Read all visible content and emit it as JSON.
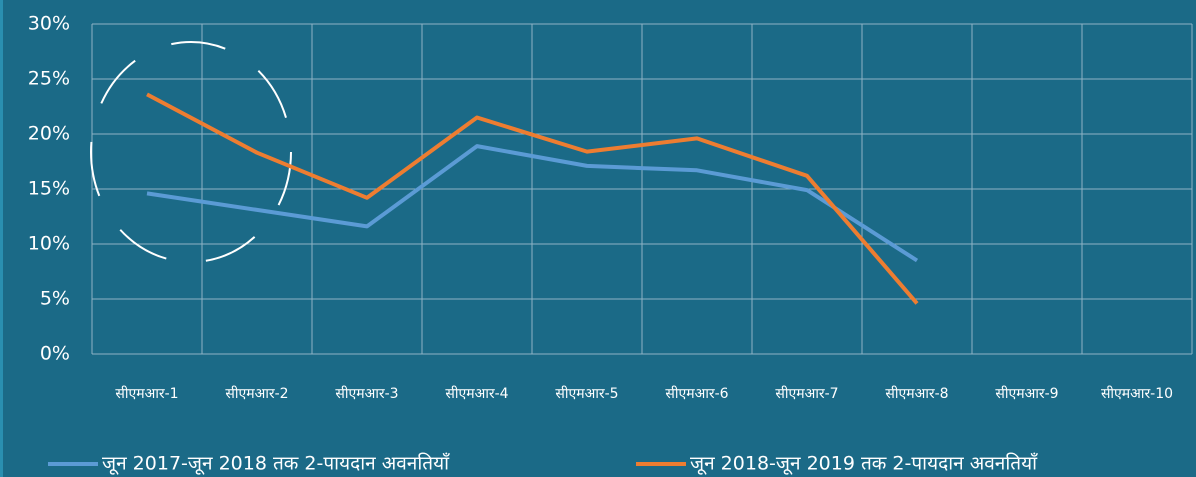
{
  "chart_data": {
    "type": "line",
    "categories": [
      "सीएमआर-1",
      "सीएमआर-2",
      "सीएमआर-3",
      "सीएमआर-4",
      "सीएमआर-5",
      "सीएमआर-6",
      "सीएमआर-7",
      "सीएमआर-8",
      "सीएमआर-9",
      "सीएमआर-10"
    ],
    "series": [
      {
        "name": "जून 2017-जून 2018 तक 2-पायदान अवनतियाँ",
        "color": "#5b9bd5",
        "values": [
          14.6,
          13.1,
          11.6,
          18.9,
          17.1,
          16.7,
          14.9,
          8.5,
          null,
          null
        ]
      },
      {
        "name": "जून 2018-जून 2019 तक 2-पायदान अवनतियाँ",
        "color": "#ed7d31",
        "values": [
          23.6,
          18.3,
          14.2,
          21.5,
          18.4,
          19.6,
          16.2,
          4.6,
          null,
          null
        ]
      }
    ],
    "ylim": [
      0,
      30
    ],
    "yticks": [
      {
        "value": 0,
        "label": "0%"
      },
      {
        "value": 5,
        "label": "5%"
      },
      {
        "value": 10,
        "label": "10%"
      },
      {
        "value": 15,
        "label": "15%"
      },
      {
        "value": 20,
        "label": "20%"
      },
      {
        "value": 25,
        "label": "25%"
      },
      {
        "value": 30,
        "label": "30%"
      }
    ],
    "grid": true,
    "legend": "bottom"
  }
}
